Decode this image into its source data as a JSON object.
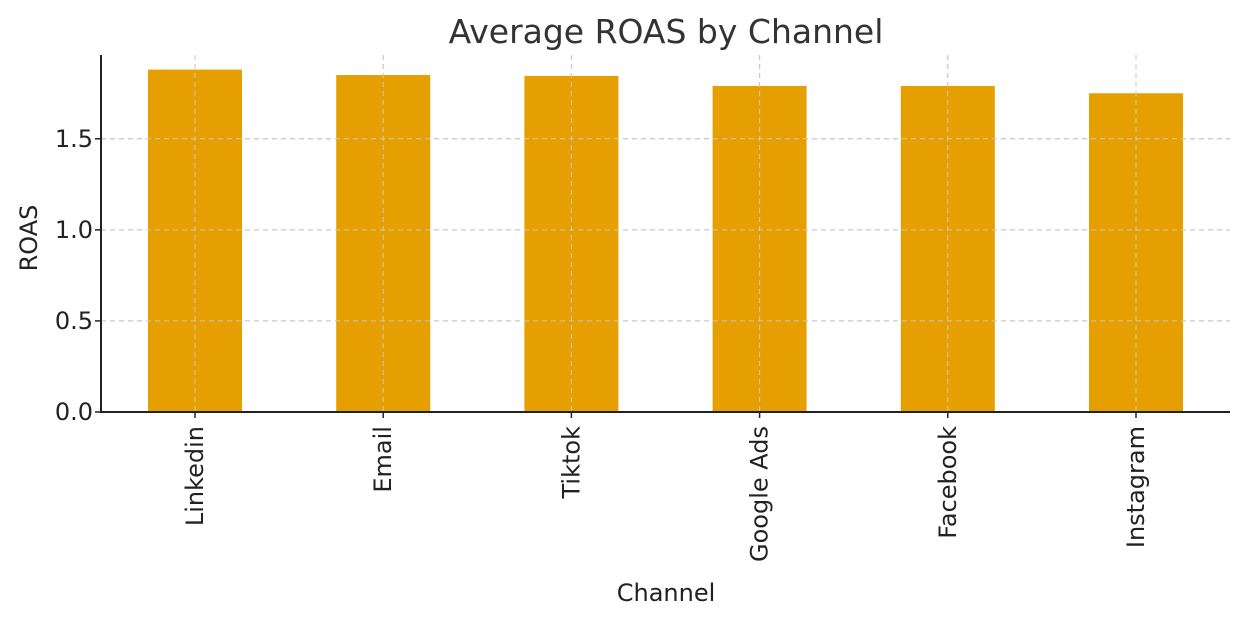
{
  "chart_data": {
    "type": "bar",
    "title": "Average ROAS by Channel",
    "xlabel": "Channel",
    "ylabel": "ROAS",
    "categories": [
      "Linkedin",
      "Email",
      "Tiktok",
      "Google Ads",
      "Facebook",
      "Instagram"
    ],
    "values": [
      1.88,
      1.85,
      1.845,
      1.79,
      1.79,
      1.75
    ],
    "ylim": [
      0,
      1.96
    ],
    "yticks": [
      0.0,
      0.5,
      1.0,
      1.5
    ],
    "ytick_labels": [
      "0.0",
      "0.5",
      "1.0",
      "1.5"
    ],
    "grid": true,
    "bar_color": "#E69F00"
  }
}
